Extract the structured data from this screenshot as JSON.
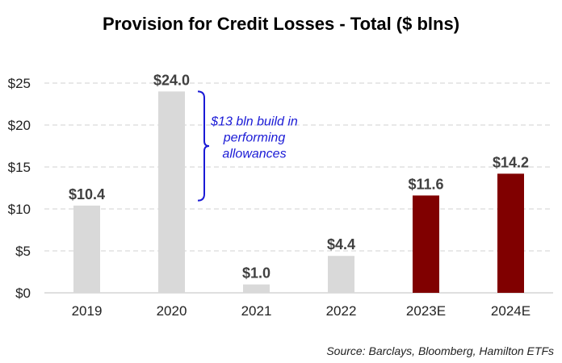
{
  "chart_data": {
    "type": "bar",
    "title": "Provision for Credit Losses - Total ($ blns)",
    "categories": [
      "2019",
      "2020",
      "2021",
      "2022",
      "2023E",
      "2024E"
    ],
    "values": [
      10.4,
      24.0,
      1.0,
      4.4,
      11.6,
      14.2
    ],
    "data_labels": [
      "$10.4",
      "$24.0",
      "$1.0",
      "$4.4",
      "$11.6",
      "$14.2"
    ],
    "bar_colors": [
      "#d9d9d9",
      "#d9d9d9",
      "#d9d9d9",
      "#d9d9d9",
      "#800000",
      "#800000"
    ],
    "ylim": [
      0,
      25
    ],
    "yticks": [
      0,
      5,
      10,
      15,
      20,
      25
    ],
    "ytick_labels": [
      "$0",
      "$5",
      "$10",
      "$15",
      "$20",
      "$25"
    ],
    "xlabel": "",
    "ylabel": "",
    "grid": true,
    "annotation": {
      "lines": [
        "$13 bln build in",
        "performing",
        "allowances"
      ],
      "bracket_from": 11.0,
      "bracket_to": 24.0,
      "category": "2020",
      "color": "#1a1ad6"
    },
    "source": "Source: Barclays, Bloomberg, Hamilton ETFs"
  }
}
